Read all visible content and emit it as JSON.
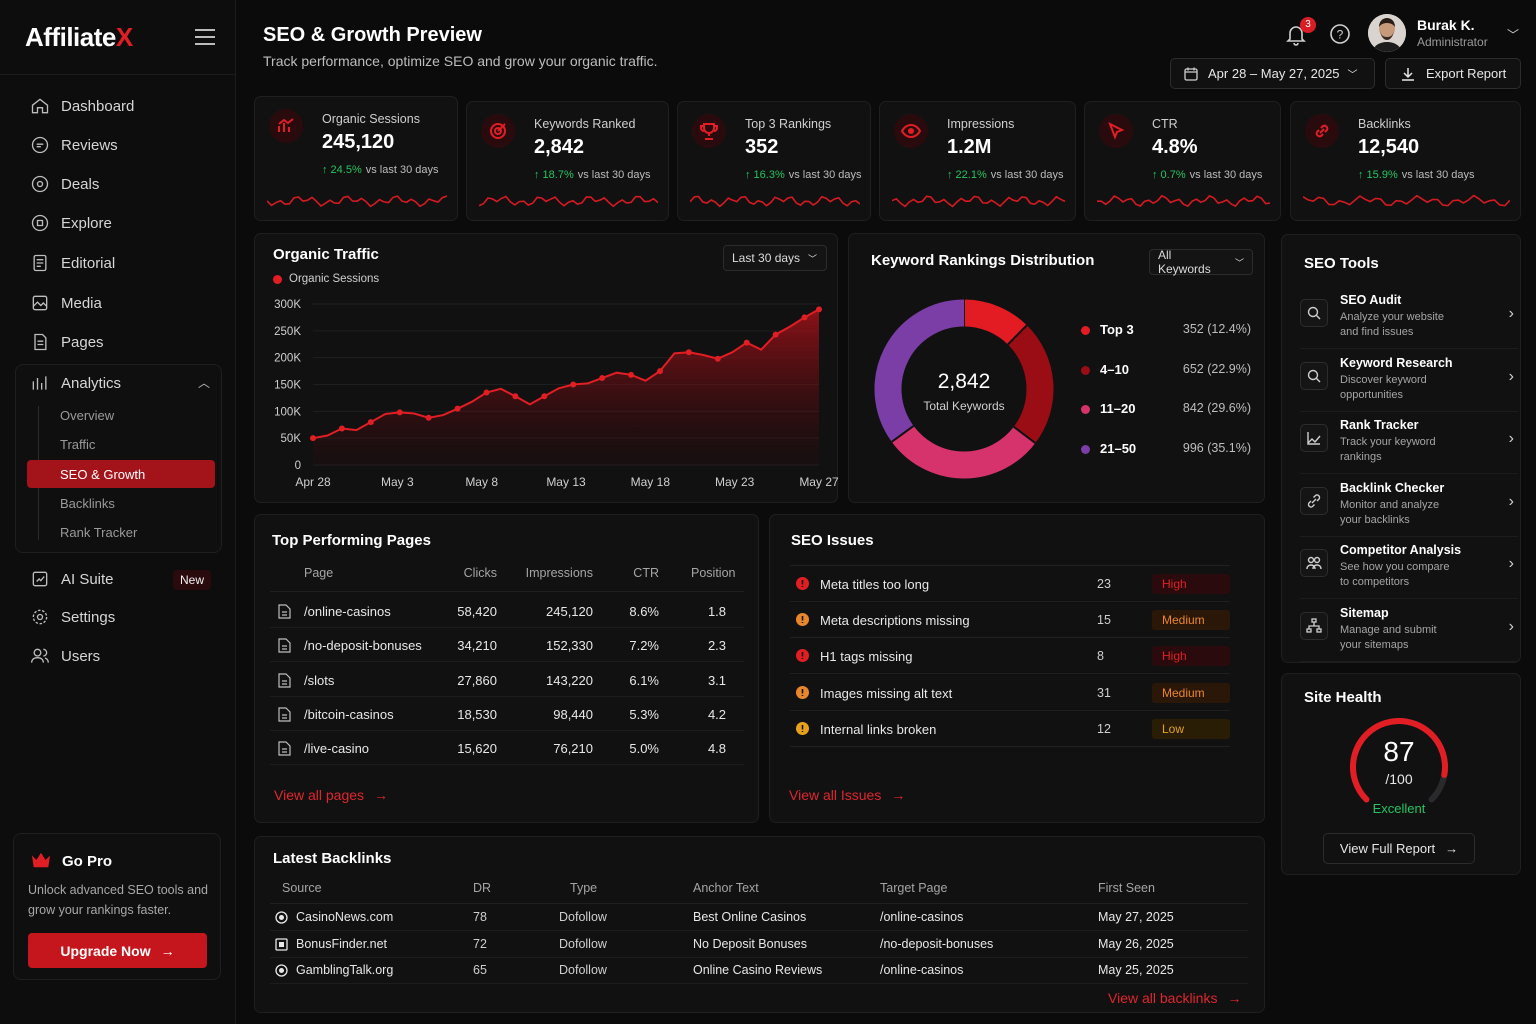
{
  "brand": {
    "name_main": "Affiliate",
    "name_accent": "X"
  },
  "sidebar": {
    "items": [
      {
        "label": "Dashboard",
        "icon": "home-icon"
      },
      {
        "label": "Reviews",
        "icon": "chat-icon"
      },
      {
        "label": "Deals",
        "icon": "tag-icon"
      },
      {
        "label": "Explore",
        "icon": "compass-icon"
      },
      {
        "label": "Editorial",
        "icon": "document-icon"
      },
      {
        "label": "Media",
        "icon": "image-icon"
      },
      {
        "label": "Pages",
        "icon": "file-icon"
      },
      {
        "label": "Analytics",
        "icon": "chart-icon"
      }
    ],
    "analytics_sub": [
      "Overview",
      "Traffic",
      "SEO & Growth",
      "Backlinks",
      "Rank Tracker"
    ],
    "bottom_items": [
      {
        "label": "AI Suite",
        "icon": "sparkle-icon",
        "badge": "New"
      },
      {
        "label": "Settings",
        "icon": "gear-icon"
      },
      {
        "label": "Users",
        "icon": "users-icon"
      }
    ],
    "gopro": {
      "title": "Go Pro",
      "desc": "Unlock advanced SEO tools and grow your rankings faster.",
      "button": "Upgrade Now"
    }
  },
  "header": {
    "title": "SEO & Growth Preview",
    "subtitle": "Track performance, optimize SEO and grow your organic traffic.",
    "notifications": "3",
    "user_name": "Burak K.",
    "user_role": "Administrator",
    "date_range": "Apr 28 – May 27, 2025",
    "export": "Export Report"
  },
  "kpis": [
    {
      "label": "Organic Sessions",
      "value": "245,120",
      "change": "↑ 24.5%",
      "vs": "vs last 30 days"
    },
    {
      "label": "Keywords Ranked",
      "value": "2,842",
      "change": "↑ 18.7%",
      "vs": "vs last 30 days"
    },
    {
      "label": "Top 3 Rankings",
      "value": "352",
      "change": "↑ 16.3%",
      "vs": "vs last 30 days"
    },
    {
      "label": "Impressions",
      "value": "1.2M",
      "change": "↑ 22.1%",
      "vs": "vs last 30 days"
    },
    {
      "label": "CTR",
      "value": "4.8%",
      "change": "↑ 0.7%",
      "vs": "vs last 30 days"
    },
    {
      "label": "Backlinks",
      "value": "12,540",
      "change": "↑ 15.9%",
      "vs": "vs last 30 days"
    }
  ],
  "traffic": {
    "title": "Organic Traffic",
    "legend": "Organic Sessions",
    "range": "Last 30 days"
  },
  "chart_data": [
    {
      "type": "area",
      "title": "Organic Traffic",
      "series": [
        {
          "name": "Organic Sessions",
          "values": [
            50000,
            55000,
            68000,
            65000,
            80000,
            95000,
            98000,
            96000,
            88000,
            93000,
            105000,
            118000,
            135000,
            142000,
            128000,
            113000,
            128000,
            143000,
            150000,
            152000,
            162000,
            172000,
            168000,
            157000,
            175000,
            208000,
            210000,
            205000,
            198000,
            210000,
            228000,
            215000,
            243000,
            258000,
            275000,
            290000
          ]
        }
      ],
      "xticks": [
        "Apr 28",
        "May 3",
        "May 8",
        "May 13",
        "May 18",
        "May 23",
        "May 27"
      ],
      "yticks": [
        "0",
        "50K",
        "100K",
        "150K",
        "200K",
        "250K",
        "300K"
      ],
      "ylim": [
        0,
        300000
      ],
      "color": "#e01e24"
    },
    {
      "type": "pie",
      "title": "Keyword Rankings Distribution",
      "center_value": "2,842",
      "center_label": "Total Keywords",
      "categories": [
        "Top 3",
        "4–10",
        "11–20",
        "21–50"
      ],
      "values": [
        352,
        652,
        842,
        996
      ],
      "labels": [
        "352 (12.4%)",
        "652 (22.9%)",
        "842 (29.6%)",
        "996 (35.1%)"
      ],
      "colors": [
        "#e31b23",
        "#9b0d14",
        "#d6336c",
        "#7b3da6"
      ],
      "filter": "All Keywords"
    }
  ],
  "top_pages": {
    "title": "Top Performing Pages",
    "headers": [
      "Page",
      "Clicks",
      "Impressions",
      "CTR",
      "Position"
    ],
    "rows": [
      [
        "/online-casinos",
        "58,420",
        "245,120",
        "8.6%",
        "1.8"
      ],
      [
        "/no-deposit-bonuses",
        "34,210",
        "152,330",
        "7.2%",
        "2.3"
      ],
      [
        "/slots",
        "27,860",
        "143,220",
        "6.1%",
        "3.1"
      ],
      [
        "/bitcoin-casinos",
        "18,530",
        "98,440",
        "5.3%",
        "4.2"
      ],
      [
        "/live-casino",
        "15,620",
        "76,210",
        "5.0%",
        "4.8"
      ]
    ],
    "link": "View all pages"
  },
  "issues": {
    "title": "SEO Issues",
    "rows": [
      {
        "name": "Meta titles too long",
        "count": "23",
        "severity": "High",
        "color": "#e01e24"
      },
      {
        "name": "Meta descriptions missing",
        "count": "15",
        "severity": "Medium",
        "color": "#e8872a"
      },
      {
        "name": "H1 tags missing",
        "count": "8",
        "severity": "High",
        "color": "#e01e24"
      },
      {
        "name": "Images missing alt text",
        "count": "31",
        "severity": "Medium",
        "color": "#e8872a"
      },
      {
        "name": "Internal links broken",
        "count": "12",
        "severity": "Low",
        "color": "#e7a21a"
      }
    ],
    "link": "View all Issues"
  },
  "tools": {
    "title": "SEO Tools",
    "items": [
      {
        "name": "SEO Audit",
        "desc": "Analyze your website and find issues",
        "icon": "audit-icon"
      },
      {
        "name": "Keyword Research",
        "desc": "Discover keyword opportunities",
        "icon": "search-icon"
      },
      {
        "name": "Rank Tracker",
        "desc": "Track your keyword rankings",
        "icon": "trend-icon"
      },
      {
        "name": "Backlink Checker",
        "desc": "Monitor and analyze your backlinks",
        "icon": "link-icon"
      },
      {
        "name": "Competitor Analysis",
        "desc": "See how you compare to competitors",
        "icon": "people-icon"
      },
      {
        "name": "Sitemap",
        "desc": "Manage and submit your sitemaps",
        "icon": "sitemap-icon"
      }
    ]
  },
  "health": {
    "title": "Site Health",
    "score": "87",
    "max": "/100",
    "status": "Excellent",
    "fraction": 0.87,
    "button": "View Full Report"
  },
  "backlinks": {
    "title": "Latest Backlinks",
    "headers": [
      "Source",
      "DR",
      "Type",
      "Anchor Text",
      "Target Page",
      "First Seen"
    ],
    "rows": [
      [
        "CasinoNews.com",
        "78",
        "Dofollow",
        "Best Online Casinos",
        "/online-casinos",
        "May 27, 2025"
      ],
      [
        "BonusFinder.net",
        "72",
        "Dofollow",
        "No Deposit Bonuses",
        "/no-deposit-bonuses",
        "May 26, 2025"
      ],
      [
        "GamblingTalk.org",
        "65",
        "Dofollow",
        "Online Casino Reviews",
        "/online-casinos",
        "May 25, 2025"
      ]
    ],
    "link": "View all backlinks"
  }
}
